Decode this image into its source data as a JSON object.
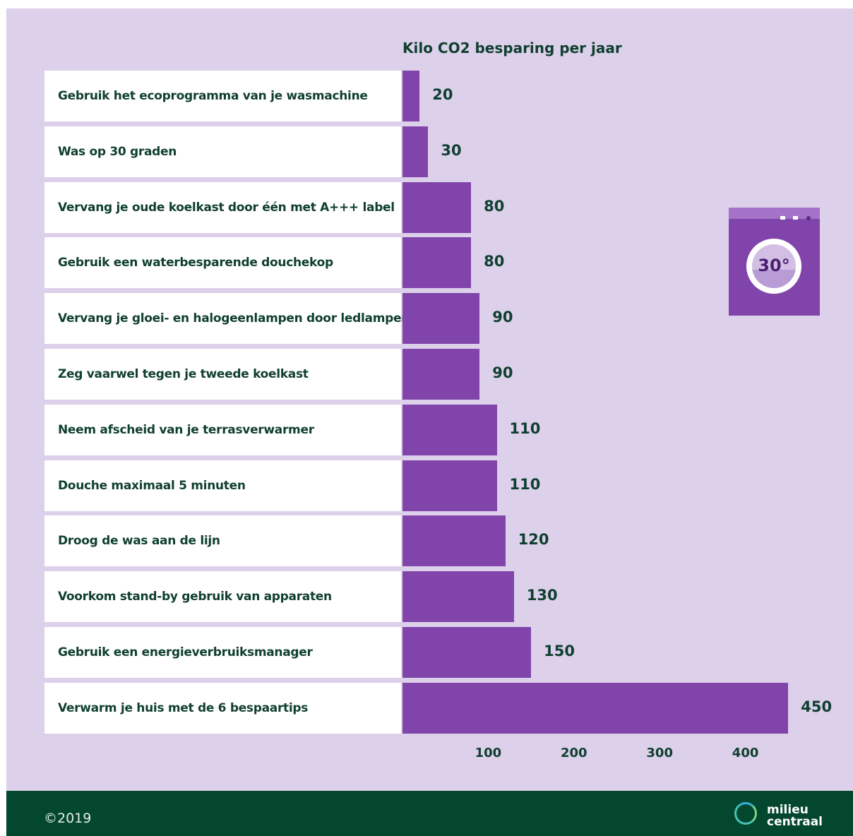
{
  "chart_data": {
    "type": "bar",
    "orientation": "horizontal",
    "title": "Kilo CO2 besparing per jaar",
    "categories": [
      "Gebruik het ecoprogramma van je wasmachine",
      "Was op 30 graden",
      "Vervang je oude koelkast door één met A+++ label",
      "Gebruik een waterbesparende douchekop",
      "Vervang je gloei- en halogeenlampen door ledlampen",
      "Zeg vaarwel tegen je tweede koelkast",
      "Neem afscheid van je terrasverwarmer",
      "Douche maximaal 5 minuten",
      "Droog de was aan de lijn",
      "Voorkom stand-by gebruik van apparaten",
      "Gebruik een energieverbruiksmanager",
      "Verwarm je huis met de 6 bespaartips"
    ],
    "values": [
      20,
      30,
      80,
      80,
      90,
      90,
      110,
      110,
      120,
      130,
      150,
      450
    ],
    "xticks": [
      100,
      200,
      300,
      400
    ],
    "xlim": [
      0,
      450
    ],
    "grid": false,
    "bar_color": "#8044ab",
    "background_color": "#ddd0ea"
  },
  "footer": {
    "copyright": "©2019",
    "logo_line1": "milieu",
    "logo_line2": "centraal",
    "background_color": "#03472f"
  },
  "illustration": {
    "icon": "washing-machine-icon",
    "temperature_label": "30°"
  }
}
